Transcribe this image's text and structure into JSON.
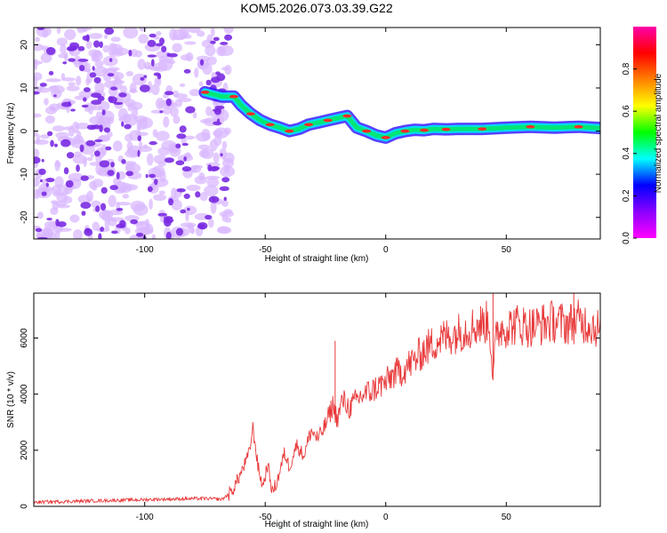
{
  "title": "KOM5.2026.073.03.39.G22",
  "colors": {
    "snr_line": "#e8393a",
    "axis": "#000000",
    "spectrum_low": "#d9b8ff",
    "spectrum_mid": "#7a2be2",
    "spectrum_ridge_core": "#00e676",
    "spectrum_ridge_hot": "#ff2a2a"
  },
  "chart_data": [
    {
      "type": "heatmap",
      "title": "",
      "xlabel": "Height of straight line (km)",
      "ylabel": "Frequency (Hz)",
      "xlim": [
        -146,
        89
      ],
      "ylim": [
        -25,
        24
      ],
      "x_ticks": [
        -100,
        -50,
        0,
        50
      ],
      "y_ticks": [
        -20,
        -10,
        0,
        10,
        20
      ],
      "x_tick_labels": [
        "-100",
        "-50",
        "0",
        "50"
      ],
      "y_tick_labels": [
        "-20",
        "-10",
        "0",
        "10",
        "20"
      ],
      "noise_region_x": [
        -146,
        -65
      ],
      "ridge": {
        "x": [
          -75,
          -68,
          -63,
          -60,
          -56,
          -52,
          -48,
          -44,
          -40,
          -36,
          -32,
          -28,
          -24,
          -20,
          -16,
          -12,
          -8,
          -4,
          0,
          4,
          8,
          12,
          16,
          20,
          25,
          30,
          40,
          50,
          60,
          70,
          80,
          89
        ],
        "y": [
          9,
          8,
          8,
          6,
          4,
          2.5,
          1.5,
          0.8,
          0,
          0.5,
          1.5,
          2,
          2.5,
          3,
          3.5,
          0.8,
          0,
          -1,
          -1.5,
          -0.5,
          0,
          0.3,
          0.2,
          0.5,
          0.4,
          0.5,
          0.5,
          0.8,
          1,
          0.8,
          1,
          0.7
        ]
      },
      "colorbar": {
        "label": "Normalized spectral amplitude",
        "range": [
          0,
          1
        ],
        "ticks": [
          0.0,
          0.2,
          0.4,
          0.6,
          0.8
        ],
        "tick_labels": [
          "0.0",
          "0.2",
          "0.4",
          "0.6",
          "0.8"
        ],
        "stops": [
          "#ff00ff",
          "#8a00ff",
          "#0000ff",
          "#00ffff",
          "#00ff00",
          "#ffff00",
          "#ff8000",
          "#ff0000",
          "#ff00aa"
        ]
      }
    },
    {
      "type": "line",
      "title": "",
      "xlabel": "Height of straight line (km)",
      "ylabel": "SNR (10 * v/v)",
      "xlim": [
        -146,
        89
      ],
      "ylim": [
        0,
        7600
      ],
      "x_ticks": [
        -100,
        -50,
        0,
        50
      ],
      "y_ticks": [
        0,
        2000,
        4000,
        6000
      ],
      "x_tick_labels": [
        "-100",
        "-50",
        "0",
        "50"
      ],
      "y_tick_labels": [
        "0",
        "2000",
        "4000",
        "6000"
      ],
      "series": [
        {
          "name": "SNR",
          "x": [
            -146,
            -130,
            -110,
            -90,
            -75,
            -68,
            -64,
            -60,
            -57,
            -55,
            -53,
            -51,
            -49,
            -47,
            -45,
            -42,
            -40,
            -37,
            -34,
            -31,
            -28,
            -25,
            -22,
            -20,
            -18,
            -15,
            -12,
            -9,
            -6,
            -3,
            0,
            3,
            6,
            9,
            12,
            15,
            18,
            21,
            24,
            27,
            30,
            33,
            36,
            40,
            43,
            44.5,
            46,
            50,
            55,
            60,
            65,
            70,
            75,
            80,
            85,
            89
          ],
          "values": [
            150,
            180,
            220,
            260,
            280,
            250,
            500,
            1200,
            1800,
            2800,
            1400,
            700,
            1500,
            500,
            900,
            1900,
            1400,
            2200,
            1800,
            2700,
            2400,
            2900,
            3600,
            3100,
            3800,
            3500,
            3800,
            4000,
            4100,
            4300,
            4400,
            4700,
            4800,
            5000,
            5200,
            5500,
            5700,
            5900,
            6000,
            6100,
            6200,
            6300,
            6400,
            6500,
            6600,
            4500,
            6300,
            6400,
            6500,
            6400,
            6500,
            6600,
            6500,
            6600,
            6500,
            6300
          ]
        }
      ],
      "annotations": [
        {
          "x": -21,
          "value": 5900,
          "label": ""
        },
        {
          "x": 44.5,
          "value": 7600,
          "label": ""
        },
        {
          "x": 78,
          "value": 7600,
          "label": ""
        }
      ]
    }
  ]
}
